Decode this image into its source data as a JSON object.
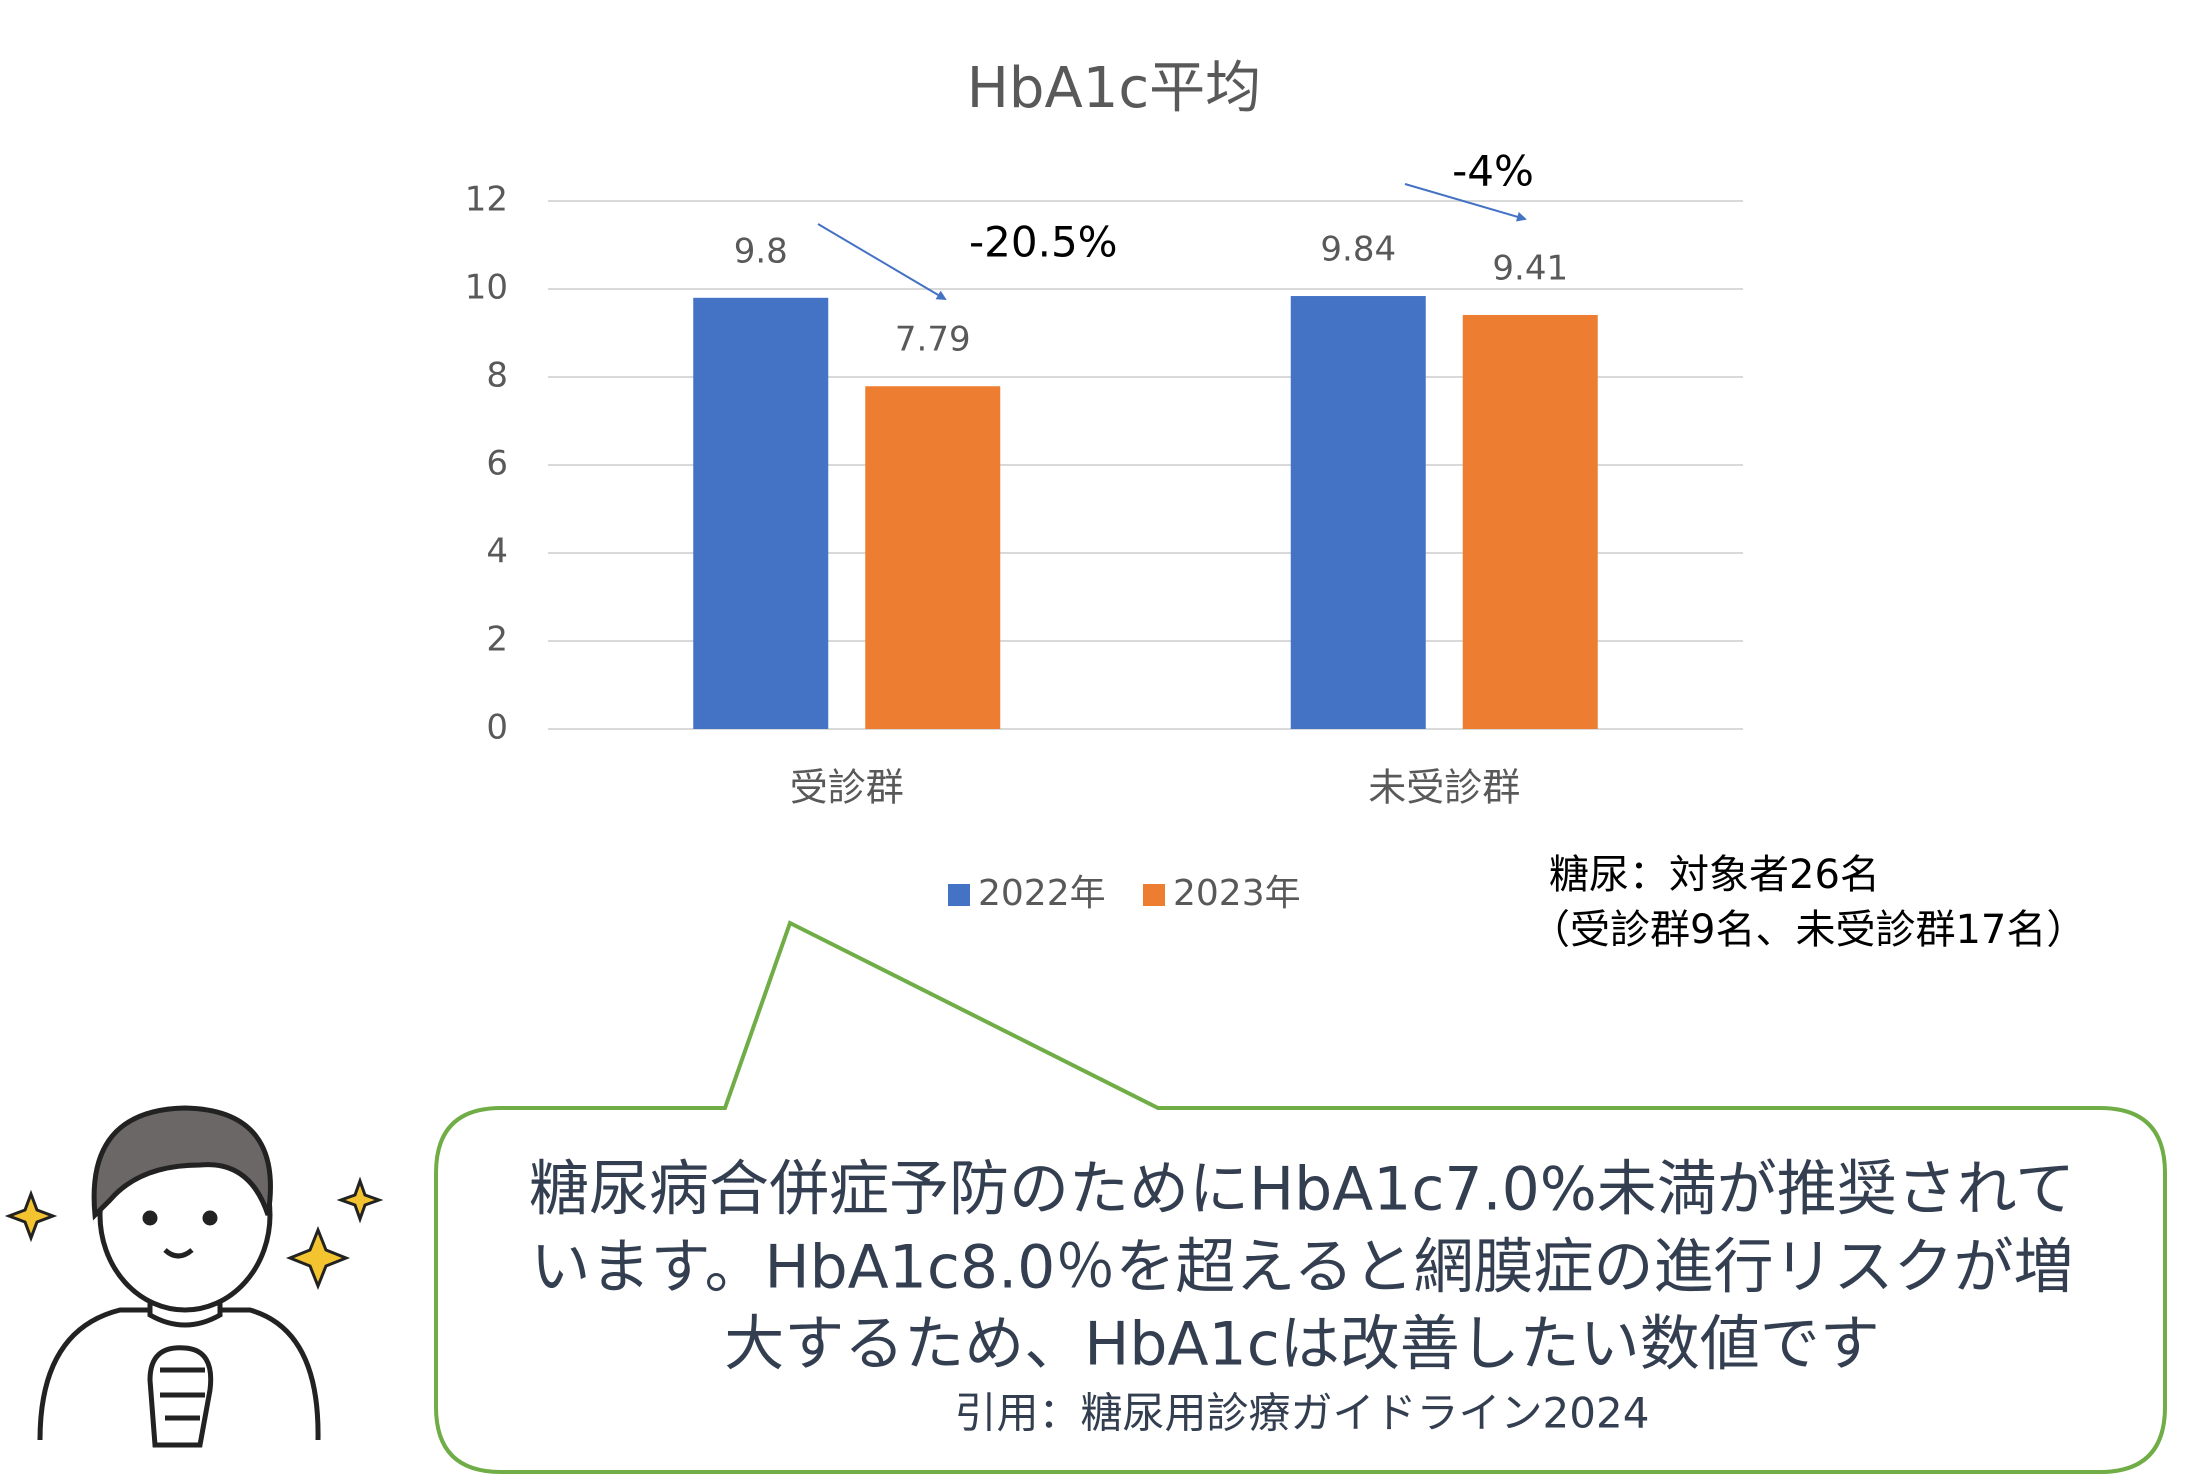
{
  "chart_data": {
    "type": "bar",
    "title": "HbA1c平均",
    "categories": [
      "受診群",
      "未受診群"
    ],
    "series": [
      {
        "name": "2022年",
        "color": "#4472c4",
        "values": [
          9.8,
          9.84
        ]
      },
      {
        "name": "2023年",
        "color": "#ed7d31",
        "values": [
          7.79,
          9.41
        ]
      }
    ],
    "ylim": [
      0,
      12
    ],
    "yticks": [
      0,
      2,
      4,
      6,
      8,
      10,
      12
    ],
    "grid": true,
    "annotations": [
      "-20.5%",
      "-4%"
    ]
  },
  "notes": [
    "糖尿：対象者26名",
    "（受診群9名、未受診群17名）"
  ],
  "callout": {
    "lines": [
      "糖尿病合併症予防のためにHbA1c7.0%未満が推奨されて",
      "います。HbA1c8.0％を超えると網膜症の進行リスクが増",
      "大するため、HbA1cは改善したい数値です"
    ],
    "citation": "引用：糖尿用診療ガイドライン2024"
  }
}
